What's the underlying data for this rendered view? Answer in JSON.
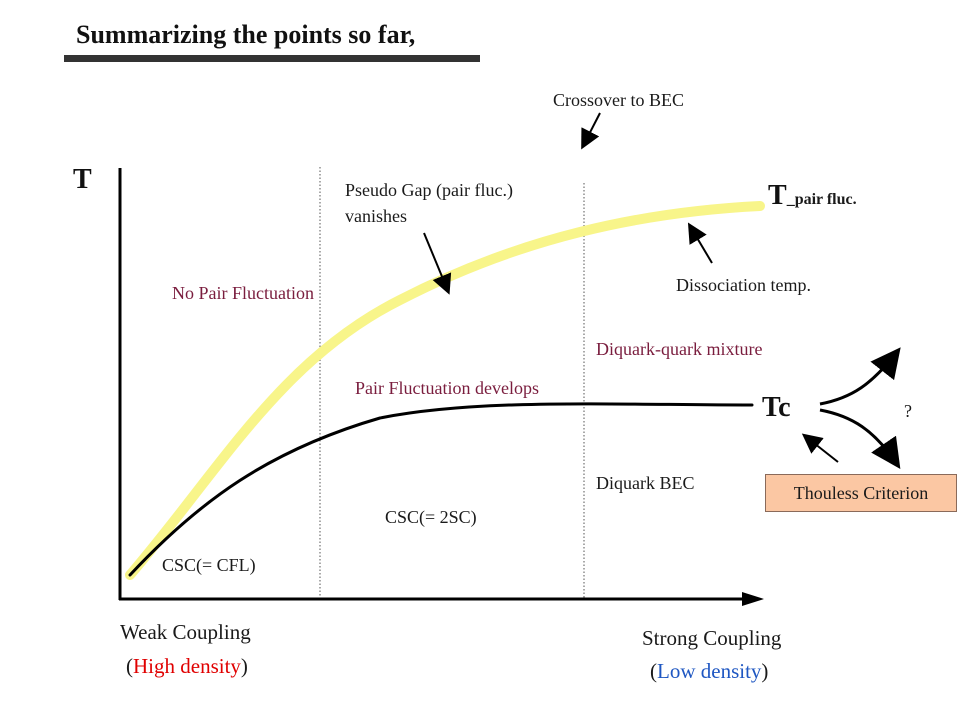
{
  "title": "Summarizing the points so far,",
  "axes": {
    "y_label": "T"
  },
  "curves": {
    "pair_fluc_main": "T",
    "pair_fluc_sub": "_pair fluc.",
    "tc_label": "Tc"
  },
  "annotations": {
    "crossover": "Crossover to BEC",
    "pseudo_gap_line1": "Pseudo Gap (pair fluc.)",
    "pseudo_gap_line2": "vanishes",
    "dissociation": "Dissociation temp.",
    "no_pair_fluc": "No Pair Fluctuation",
    "mixture": "Diquark-quark mixture",
    "pair_fluc_develops": "Pair Fluctuation develops",
    "question": "?",
    "diquark_bec": "Diquark BEC",
    "csc_2sc": "CSC(= 2SC)",
    "csc_cfl": "CSC(= CFL)",
    "thouless": "Thouless Criterion"
  },
  "x_axis": {
    "weak": "Weak Coupling",
    "weak_open": "(",
    "weak_density": "High density",
    "weak_close": ")",
    "strong": "Strong Coupling",
    "strong_open": "(",
    "strong_density": "Low density",
    "strong_close": ")"
  },
  "colors": {
    "pair_fluc_curve": "#f8f58a",
    "tc_curve": "#000000",
    "annotation_text": "#7a1d3e",
    "high_density": "#e00000",
    "low_density": "#1f57c2",
    "thouless_box": "#fbc7a3"
  }
}
